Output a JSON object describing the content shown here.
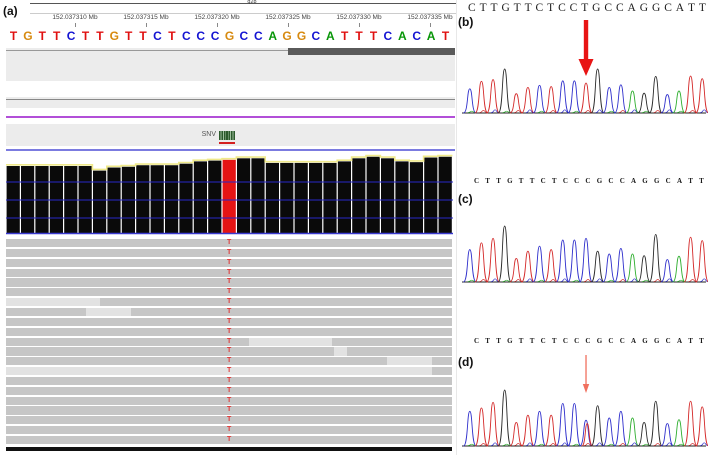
{
  "panel_a": {
    "label": "(a)",
    "chromosome_band": "q28",
    "ruler_labels": [
      "152.037310 Mb",
      "152.037315 Mb",
      "152.037320 Mb",
      "152.037325 Mb",
      "152.037330 Mb",
      "152.037335 Mb"
    ],
    "reference_sequence": "TGTTCTTGTTCTCCCGCCAGGCATTTCACAT",
    "snv_track_label": "SNV",
    "variant_column_index": 15,
    "variant_read_base": "T",
    "coverage_heights": [
      0.87,
      0.87,
      0.87,
      0.87,
      0.87,
      0.87,
      0.81,
      0.85,
      0.86,
      0.88,
      0.88,
      0.88,
      0.9,
      0.93,
      0.94,
      0.95,
      0.97,
      0.97,
      0.91,
      0.91,
      0.91,
      0.91,
      0.91,
      0.93,
      0.97,
      0.99,
      0.97,
      0.93,
      0.92,
      0.98,
      0.99
    ],
    "read_rows": [
      {},
      {},
      {},
      {},
      {},
      {},
      {
        "light": [
          [
            0,
            0.21
          ]
        ]
      },
      {
        "light": [
          [
            0.18,
            0.28
          ]
        ]
      },
      {},
      {},
      {
        "light": [
          [
            0.545,
            0.73
          ]
        ]
      },
      {
        "light": [
          [
            0.735,
            0.765
          ]
        ]
      },
      {
        "light": [
          [
            0.855,
            0.955
          ]
        ]
      },
      {
        "light": [
          [
            0,
            0.955
          ]
        ]
      },
      {},
      {},
      {},
      {},
      {},
      {},
      {}
    ],
    "colors": {
      "base_A": "#089608",
      "base_C": "#1414d2",
      "base_G": "#d78a10",
      "base_T": "#e01010",
      "coverage_bar": "#0a0a0a",
      "variant_bar": "#e51414",
      "gridline": "#2828c8",
      "topline": "#efe98a",
      "purple_line": "#b24fd8",
      "blue_line": "#7b7be0",
      "gene_bar": "#5a5a5a",
      "snv_icon_green": "#2d5a2d",
      "snv_icon_red": "#d42020"
    }
  },
  "panel_b": {
    "label": "(b)",
    "sequence": "CTTGTTCTCCTGCCAGGCATT",
    "arrow_peak_index": 10,
    "arrow_style": "big",
    "arrow_color": "#e81414",
    "peak_heights": [
      0.55,
      0.72,
      0.76,
      1.0,
      0.44,
      0.58,
      0.63,
      0.6,
      0.73,
      0.73,
      0.68,
      1.0,
      0.58,
      0.64,
      0.5,
      0.45,
      0.83,
      0.42,
      0.5,
      0.84,
      0.78
    ]
  },
  "panel_c": {
    "label": "(c)",
    "sequence": "CTTGTTCTCCCGCCAGGCATT",
    "peak_heights": [
      0.58,
      0.7,
      0.78,
      1.0,
      0.42,
      0.55,
      0.64,
      0.58,
      0.75,
      0.75,
      0.78,
      0.55,
      0.5,
      0.6,
      0.5,
      0.47,
      0.85,
      0.4,
      0.46,
      0.8,
      0.74
    ]
  },
  "panel_d": {
    "label": "(d)",
    "sequence": "CTTGTTCTCCCGCCAGGCATT",
    "arrow_peak_index": 10,
    "arrow_style": "thin",
    "arrow_color": "#f0705e",
    "peak_heights": [
      0.62,
      0.68,
      0.78,
      1.0,
      0.42,
      0.55,
      0.62,
      0.55,
      0.76,
      0.76,
      0.46,
      0.72,
      0.5,
      0.62,
      0.5,
      0.42,
      0.8,
      0.4,
      0.47,
      0.8,
      0.7
    ],
    "overlay_peak": {
      "index": 10,
      "base": "T",
      "height": 0.4
    }
  },
  "trace_colors": {
    "A": "#2fae2f",
    "C": "#3030cc",
    "G": "#2a2a2a",
    "T": "#d42a2a"
  }
}
